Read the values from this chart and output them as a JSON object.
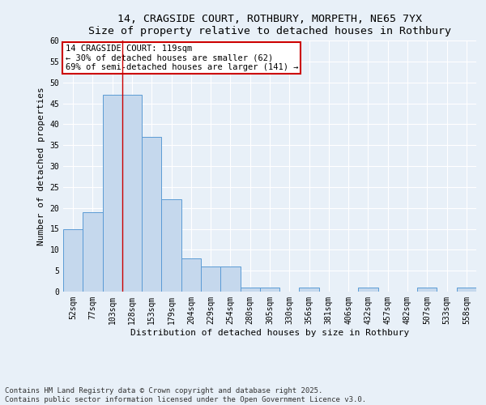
{
  "title": "14, CRAGSIDE COURT, ROTHBURY, MORPETH, NE65 7YX",
  "subtitle": "Size of property relative to detached houses in Rothbury",
  "xlabel": "Distribution of detached houses by size in Rothbury",
  "ylabel": "Number of detached properties",
  "categories": [
    "52sqm",
    "77sqm",
    "103sqm",
    "128sqm",
    "153sqm",
    "179sqm",
    "204sqm",
    "229sqm",
    "254sqm",
    "280sqm",
    "305sqm",
    "330sqm",
    "356sqm",
    "381sqm",
    "406sqm",
    "432sqm",
    "457sqm",
    "482sqm",
    "507sqm",
    "533sqm",
    "558sqm"
  ],
  "values": [
    15,
    19,
    47,
    47,
    37,
    22,
    8,
    6,
    6,
    1,
    1,
    0,
    1,
    0,
    0,
    1,
    0,
    0,
    1,
    0,
    1
  ],
  "bar_color": "#c5d8ed",
  "bar_edge_color": "#5b9bd5",
  "ylim": [
    0,
    60
  ],
  "yticks": [
    0,
    5,
    10,
    15,
    20,
    25,
    30,
    35,
    40,
    45,
    50,
    55,
    60
  ],
  "red_line_x": 2.5,
  "annotation_box_text": "14 CRAGSIDE COURT: 119sqm\n← 30% of detached houses are smaller (62)\n69% of semi-detached houses are larger (141) →",
  "annotation_box_color": "#ffffff",
  "annotation_box_edge_color": "#cc0000",
  "footnote": "Contains HM Land Registry data © Crown copyright and database right 2025.\nContains public sector information licensed under the Open Government Licence v3.0.",
  "bg_color": "#e8f0f8",
  "title_fontsize": 9.5,
  "axis_label_fontsize": 8,
  "tick_fontsize": 7,
  "annotation_fontsize": 7.5,
  "footnote_fontsize": 6.5
}
